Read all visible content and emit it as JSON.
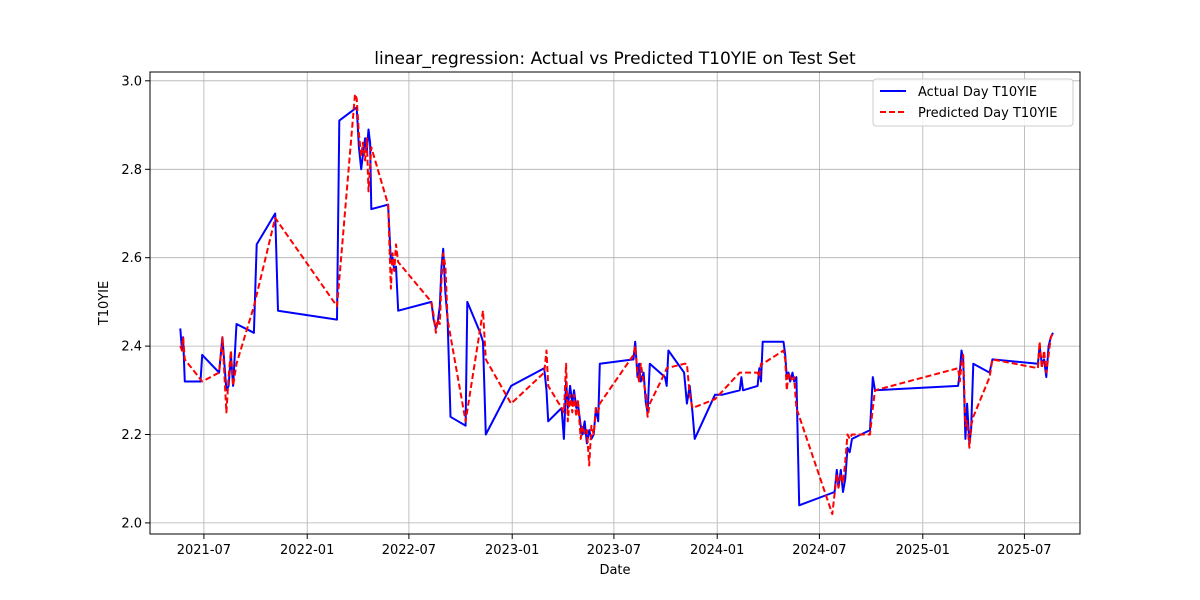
{
  "chart_data": {
    "type": "line",
    "title": "linear_regression: Actual vs Predicted T10YIE on Test Set",
    "xlabel": "Date",
    "ylabel": "T10YIE",
    "xlim": [
      "2021-03-27",
      "2025-10-08"
    ],
    "ylim": [
      1.975,
      3.02
    ],
    "x_ticks": [
      {
        "date": "2021-07-01",
        "label": "2021-07"
      },
      {
        "date": "2022-01-01",
        "label": "2022-01"
      },
      {
        "date": "2022-07-01",
        "label": "2022-07"
      },
      {
        "date": "2023-01-01",
        "label": "2023-01"
      },
      {
        "date": "2023-07-01",
        "label": "2023-07"
      },
      {
        "date": "2024-01-01",
        "label": "2024-01"
      },
      {
        "date": "2024-07-01",
        "label": "2024-07"
      },
      {
        "date": "2025-01-01",
        "label": "2025-01"
      },
      {
        "date": "2025-07-01",
        "label": "2025-07"
      }
    ],
    "y_ticks": [
      {
        "value": 2.0,
        "label": "2.0"
      },
      {
        "value": 2.2,
        "label": "2.2"
      },
      {
        "value": 2.4,
        "label": "2.4"
      },
      {
        "value": 2.6,
        "label": "2.6"
      },
      {
        "value": 2.8,
        "label": "2.8"
      },
      {
        "value": 3.0,
        "label": "3.0"
      }
    ],
    "grid": true,
    "legend_position": "top-right",
    "series": [
      {
        "name": "Actual Day T10YIE",
        "color": "#0000ff",
        "style": "solid",
        "points": [
          [
            "2021-05-20",
            2.44
          ],
          [
            "2021-05-23",
            2.39
          ],
          [
            "2021-05-25",
            2.42
          ],
          [
            "2021-05-28",
            2.32
          ],
          [
            "2021-06-25",
            2.32
          ],
          [
            "2021-06-28",
            2.38
          ],
          [
            "2021-07-28",
            2.34
          ],
          [
            "2021-08-03",
            2.42
          ],
          [
            "2021-08-10",
            2.3
          ],
          [
            "2021-08-14",
            2.31
          ],
          [
            "2021-08-18",
            2.38
          ],
          [
            "2021-08-22",
            2.31
          ],
          [
            "2021-08-28",
            2.45
          ],
          [
            "2021-09-28",
            2.43
          ],
          [
            "2021-10-03",
            2.63
          ],
          [
            "2021-11-05",
            2.7
          ],
          [
            "2021-11-10",
            2.48
          ],
          [
            "2022-02-23",
            2.46
          ],
          [
            "2022-02-27",
            2.91
          ],
          [
            "2022-03-30",
            2.94
          ],
          [
            "2022-04-03",
            2.85
          ],
          [
            "2022-04-07",
            2.8
          ],
          [
            "2022-04-10",
            2.83
          ],
          [
            "2022-04-14",
            2.87
          ],
          [
            "2022-04-17",
            2.84
          ],
          [
            "2022-04-20",
            2.89
          ],
          [
            "2022-04-23",
            2.86
          ],
          [
            "2022-04-25",
            2.71
          ],
          [
            "2022-05-25",
            2.72
          ],
          [
            "2022-05-30",
            2.59
          ],
          [
            "2022-06-02",
            2.6
          ],
          [
            "2022-06-05",
            2.57
          ],
          [
            "2022-06-08",
            2.58
          ],
          [
            "2022-06-12",
            2.48
          ],
          [
            "2022-08-10",
            2.5
          ],
          [
            "2022-08-14",
            2.46
          ],
          [
            "2022-08-18",
            2.44
          ],
          [
            "2022-08-21",
            2.45
          ],
          [
            "2022-08-25",
            2.49
          ],
          [
            "2022-08-28",
            2.58
          ],
          [
            "2022-08-31",
            2.62
          ],
          [
            "2022-09-04",
            2.52
          ],
          [
            "2022-09-08",
            2.46
          ],
          [
            "2022-09-13",
            2.24
          ],
          [
            "2022-10-10",
            2.22
          ],
          [
            "2022-10-13",
            2.5
          ],
          [
            "2022-11-05",
            2.43
          ],
          [
            "2022-11-10",
            2.41
          ],
          [
            "2022-11-15",
            2.2
          ],
          [
            "2022-12-30",
            2.31
          ],
          [
            "2023-02-27",
            2.35
          ],
          [
            "2023-03-03",
            2.3
          ],
          [
            "2023-03-06",
            2.23
          ],
          [
            "2023-03-30",
            2.26
          ],
          [
            "2023-04-03",
            2.19
          ],
          [
            "2023-04-07",
            2.32
          ],
          [
            "2023-04-10",
            2.26
          ],
          [
            "2023-04-14",
            2.31
          ],
          [
            "2023-04-18",
            2.27
          ],
          [
            "2023-04-21",
            2.3
          ],
          [
            "2023-04-25",
            2.26
          ],
          [
            "2023-04-28",
            2.27
          ],
          [
            "2023-05-03",
            2.22
          ],
          [
            "2023-05-06",
            2.2
          ],
          [
            "2023-05-10",
            2.23
          ],
          [
            "2023-05-14",
            2.18
          ],
          [
            "2023-05-18",
            2.21
          ],
          [
            "2023-05-22",
            2.19
          ],
          [
            "2023-05-26",
            2.2
          ],
          [
            "2023-05-30",
            2.26
          ],
          [
            "2023-06-03",
            2.23
          ],
          [
            "2023-06-06",
            2.36
          ],
          [
            "2023-08-05",
            2.37
          ],
          [
            "2023-08-08",
            2.41
          ],
          [
            "2023-08-12",
            2.33
          ],
          [
            "2023-08-15",
            2.36
          ],
          [
            "2023-08-18",
            2.32
          ],
          [
            "2023-08-23",
            2.34
          ],
          [
            "2023-08-27",
            2.27
          ],
          [
            "2023-08-30",
            2.25
          ],
          [
            "2023-09-03",
            2.36
          ],
          [
            "2023-09-30",
            2.33
          ],
          [
            "2023-10-03",
            2.31
          ],
          [
            "2023-10-06",
            2.39
          ],
          [
            "2023-11-03",
            2.34
          ],
          [
            "2023-11-08",
            2.27
          ],
          [
            "2023-11-13",
            2.31
          ],
          [
            "2023-11-18",
            2.25
          ],
          [
            "2023-11-22",
            2.19
          ],
          [
            "2023-12-28",
            2.29
          ],
          [
            "2024-01-10",
            2.29
          ],
          [
            "2024-02-10",
            2.3
          ],
          [
            "2024-02-13",
            2.33
          ],
          [
            "2024-02-16",
            2.3
          ],
          [
            "2024-03-13",
            2.31
          ],
          [
            "2024-03-16",
            2.35
          ],
          [
            "2024-03-19",
            2.32
          ],
          [
            "2024-03-22",
            2.41
          ],
          [
            "2024-04-28",
            2.41
          ],
          [
            "2024-05-01",
            2.38
          ],
          [
            "2024-05-04",
            2.33
          ],
          [
            "2024-05-07",
            2.34
          ],
          [
            "2024-05-10",
            2.32
          ],
          [
            "2024-05-14",
            2.34
          ],
          [
            "2024-05-17",
            2.32
          ],
          [
            "2024-05-21",
            2.33
          ],
          [
            "2024-05-26",
            2.04
          ],
          [
            "2024-07-28",
            2.07
          ],
          [
            "2024-08-01",
            2.12
          ],
          [
            "2024-08-04",
            2.08
          ],
          [
            "2024-08-08",
            2.12
          ],
          [
            "2024-08-12",
            2.07
          ],
          [
            "2024-08-16",
            2.1
          ],
          [
            "2024-08-20",
            2.17
          ],
          [
            "2024-08-24",
            2.16
          ],
          [
            "2024-08-28",
            2.19
          ],
          [
            "2024-09-29",
            2.21
          ],
          [
            "2024-10-04",
            2.33
          ],
          [
            "2024-10-08",
            2.3
          ],
          [
            "2025-03-05",
            2.31
          ],
          [
            "2025-03-08",
            2.34
          ],
          [
            "2025-03-11",
            2.39
          ],
          [
            "2025-03-14",
            2.37
          ],
          [
            "2025-03-18",
            2.19
          ],
          [
            "2025-03-21",
            2.27
          ],
          [
            "2025-03-25",
            2.18
          ],
          [
            "2025-03-28",
            2.21
          ],
          [
            "2025-04-01",
            2.36
          ],
          [
            "2025-04-30",
            2.34
          ],
          [
            "2025-05-05",
            2.37
          ],
          [
            "2025-07-25",
            2.36
          ],
          [
            "2025-07-28",
            2.4
          ],
          [
            "2025-08-01",
            2.36
          ],
          [
            "2025-08-05",
            2.37
          ],
          [
            "2025-08-09",
            2.33
          ],
          [
            "2025-08-13",
            2.4
          ],
          [
            "2025-08-17",
            2.42
          ],
          [
            "2025-08-21",
            2.43
          ]
        ]
      },
      {
        "name": "Predicted Day T10YIE",
        "color": "#ff0000",
        "style": "dashed",
        "points": [
          [
            "2021-05-20",
            2.4
          ],
          [
            "2021-05-23",
            2.39
          ],
          [
            "2021-05-25",
            2.42
          ],
          [
            "2021-05-28",
            2.37
          ],
          [
            "2021-06-28",
            2.32
          ],
          [
            "2021-07-28",
            2.34
          ],
          [
            "2021-08-03",
            2.42
          ],
          [
            "2021-08-10",
            2.25
          ],
          [
            "2021-08-14",
            2.33
          ],
          [
            "2021-08-18",
            2.39
          ],
          [
            "2021-08-22",
            2.31
          ],
          [
            "2021-08-28",
            2.36
          ],
          [
            "2021-09-28",
            2.49
          ],
          [
            "2021-11-05",
            2.69
          ],
          [
            "2022-02-23",
            2.49
          ],
          [
            "2022-03-27",
            2.97
          ],
          [
            "2022-03-30",
            2.96
          ],
          [
            "2022-04-03",
            2.88
          ],
          [
            "2022-04-07",
            2.83
          ],
          [
            "2022-04-10",
            2.86
          ],
          [
            "2022-04-14",
            2.82
          ],
          [
            "2022-04-17",
            2.87
          ],
          [
            "2022-04-20",
            2.75
          ],
          [
            "2022-04-25",
            2.85
          ],
          [
            "2022-05-25",
            2.72
          ],
          [
            "2022-05-30",
            2.53
          ],
          [
            "2022-06-02",
            2.61
          ],
          [
            "2022-06-05",
            2.57
          ],
          [
            "2022-06-08",
            2.63
          ],
          [
            "2022-06-12",
            2.59
          ],
          [
            "2022-08-10",
            2.5
          ],
          [
            "2022-08-14",
            2.47
          ],
          [
            "2022-08-18",
            2.43
          ],
          [
            "2022-08-21",
            2.46
          ],
          [
            "2022-08-25",
            2.45
          ],
          [
            "2022-08-28",
            2.55
          ],
          [
            "2022-08-31",
            2.61
          ],
          [
            "2022-09-04",
            2.58
          ],
          [
            "2022-09-08",
            2.46
          ],
          [
            "2022-10-10",
            2.23
          ],
          [
            "2022-11-10",
            2.48
          ],
          [
            "2022-11-15",
            2.37
          ],
          [
            "2022-12-30",
            2.27
          ],
          [
            "2023-02-27",
            2.34
          ],
          [
            "2023-03-03",
            2.39
          ],
          [
            "2023-03-06",
            2.31
          ],
          [
            "2023-03-30",
            2.26
          ],
          [
            "2023-04-03",
            2.25
          ],
          [
            "2023-04-07",
            2.36
          ],
          [
            "2023-04-10",
            2.23
          ],
          [
            "2023-04-14",
            2.29
          ],
          [
            "2023-04-18",
            2.25
          ],
          [
            "2023-04-21",
            2.29
          ],
          [
            "2023-04-25",
            2.24
          ],
          [
            "2023-04-28",
            2.28
          ],
          [
            "2023-05-03",
            2.19
          ],
          [
            "2023-05-06",
            2.22
          ],
          [
            "2023-05-10",
            2.2
          ],
          [
            "2023-05-14",
            2.21
          ],
          [
            "2023-05-18",
            2.13
          ],
          [
            "2023-05-22",
            2.22
          ],
          [
            "2023-05-26",
            2.2
          ],
          [
            "2023-05-30",
            2.26
          ],
          [
            "2023-06-03",
            2.25
          ],
          [
            "2023-06-06",
            2.27
          ],
          [
            "2023-08-05",
            2.38
          ],
          [
            "2023-08-08",
            2.4
          ],
          [
            "2023-08-12",
            2.34
          ],
          [
            "2023-08-15",
            2.32
          ],
          [
            "2023-08-18",
            2.36
          ],
          [
            "2023-08-23",
            2.32
          ],
          [
            "2023-08-27",
            2.29
          ],
          [
            "2023-08-30",
            2.24
          ],
          [
            "2023-09-03",
            2.27
          ],
          [
            "2023-09-30",
            2.34
          ],
          [
            "2023-10-03",
            2.35
          ],
          [
            "2023-11-03",
            2.36
          ],
          [
            "2023-11-08",
            2.36
          ],
          [
            "2023-11-13",
            2.29
          ],
          [
            "2023-11-18",
            2.26
          ],
          [
            "2023-12-28",
            2.28
          ],
          [
            "2024-02-10",
            2.34
          ],
          [
            "2024-03-13",
            2.34
          ],
          [
            "2024-03-16",
            2.33
          ],
          [
            "2024-03-19",
            2.36
          ],
          [
            "2024-03-22",
            2.36
          ],
          [
            "2024-04-28",
            2.39
          ],
          [
            "2024-05-01",
            2.37
          ],
          [
            "2024-05-04",
            2.3
          ],
          [
            "2024-05-07",
            2.34
          ],
          [
            "2024-05-10",
            2.33
          ],
          [
            "2024-05-14",
            2.32
          ],
          [
            "2024-05-17",
            2.33
          ],
          [
            "2024-05-21",
            2.26
          ],
          [
            "2024-07-24",
            2.02
          ],
          [
            "2024-08-01",
            2.11
          ],
          [
            "2024-08-04",
            2.08
          ],
          [
            "2024-08-08",
            2.11
          ],
          [
            "2024-08-12",
            2.09
          ],
          [
            "2024-08-16",
            2.14
          ],
          [
            "2024-08-20",
            2.2
          ],
          [
            "2024-08-24",
            2.19
          ],
          [
            "2024-08-28",
            2.2
          ],
          [
            "2024-09-29",
            2.2
          ],
          [
            "2024-10-04",
            2.26
          ],
          [
            "2024-10-08",
            2.3
          ],
          [
            "2025-03-05",
            2.35
          ],
          [
            "2025-03-08",
            2.32
          ],
          [
            "2025-03-11",
            2.36
          ],
          [
            "2025-03-14",
            2.38
          ],
          [
            "2025-03-18",
            2.22
          ],
          [
            "2025-03-21",
            2.23
          ],
          [
            "2025-03-25",
            2.17
          ],
          [
            "2025-03-28",
            2.22
          ],
          [
            "2025-04-01",
            2.24
          ],
          [
            "2025-04-30",
            2.33
          ],
          [
            "2025-05-05",
            2.37
          ],
          [
            "2025-07-25",
            2.35
          ],
          [
            "2025-07-28",
            2.41
          ],
          [
            "2025-08-01",
            2.35
          ],
          [
            "2025-08-05",
            2.39
          ],
          [
            "2025-08-09",
            2.34
          ],
          [
            "2025-08-13",
            2.38
          ],
          [
            "2025-08-17",
            2.42
          ],
          [
            "2025-08-21",
            2.43
          ]
        ]
      }
    ]
  }
}
